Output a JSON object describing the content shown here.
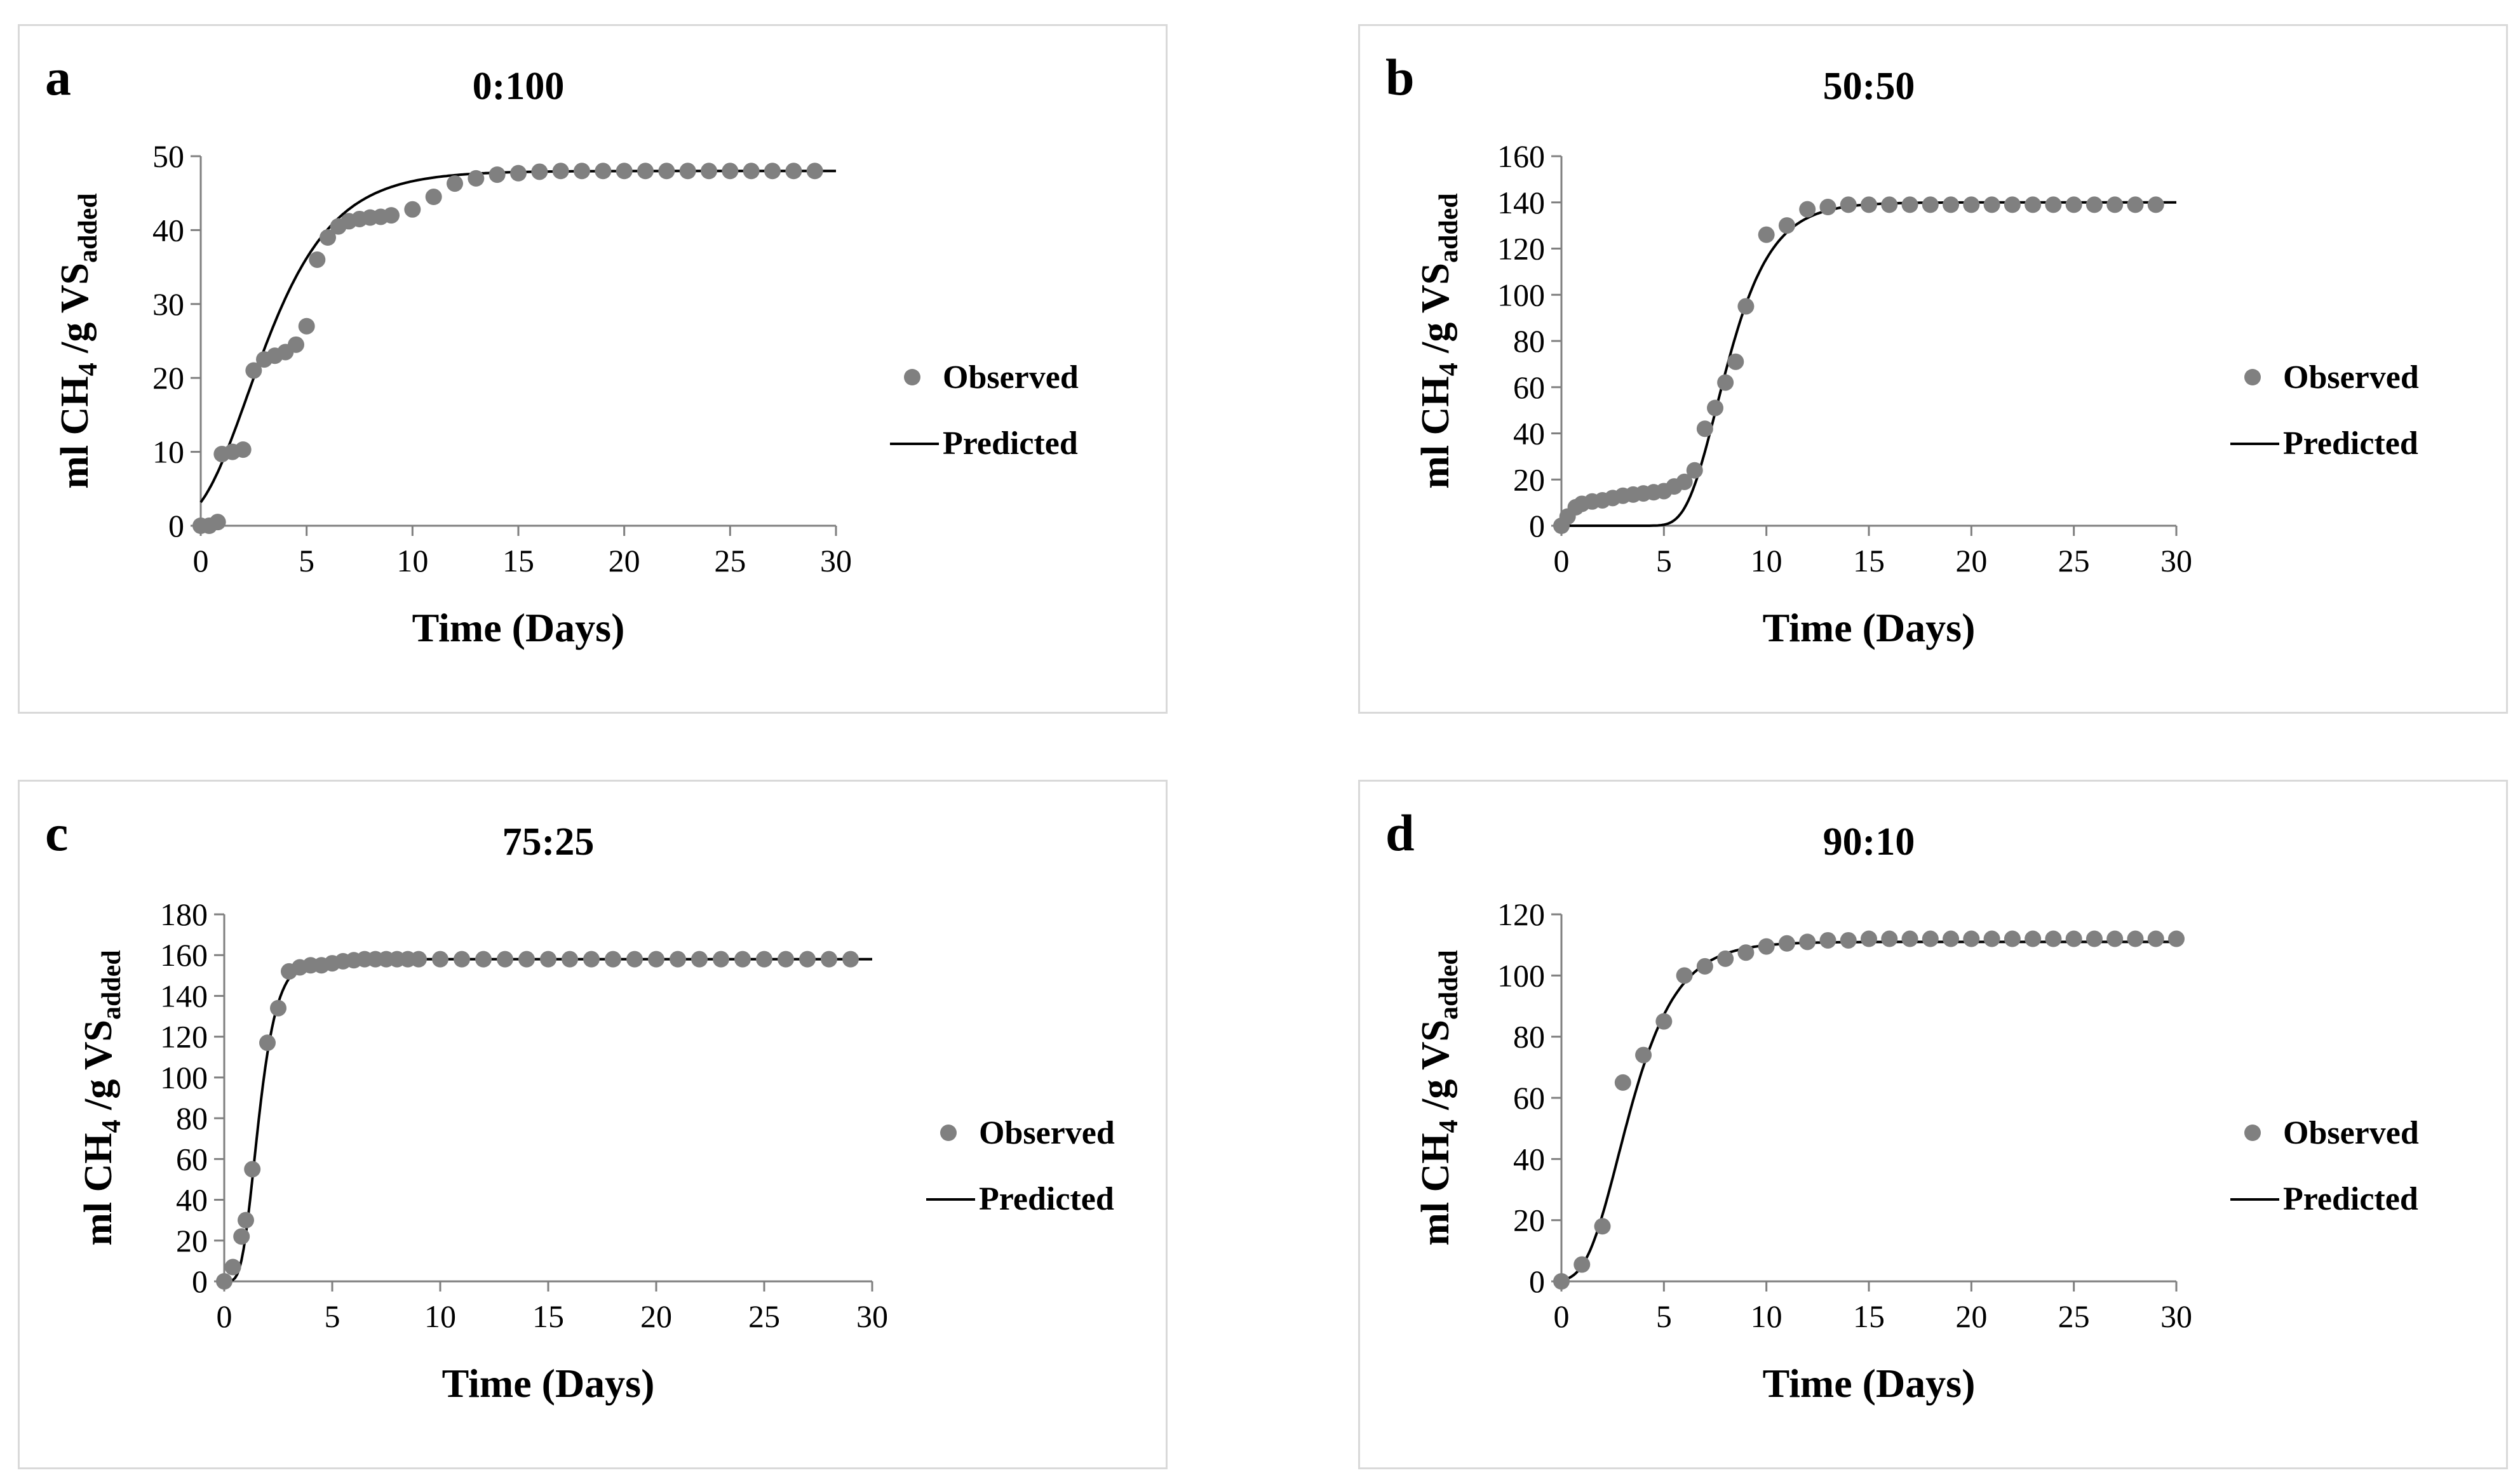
{
  "style": {
    "marker_color": "#808080",
    "line_color": "#000000",
    "axis_color": "#7f7f7f",
    "text_color": "#000000",
    "panel_border": "#d9d9d9"
  },
  "chart_data": [
    {
      "type": "scatter",
      "panel_letter": "a",
      "title": "0:100",
      "xlabel": "Time (Days)",
      "ylabel": {
        "base": "ml CH",
        "sub": "4",
        "mid": " /g VS",
        "sub2": "added"
      },
      "xlim": [
        0,
        30
      ],
      "ylim": [
        0,
        50
      ],
      "xticks": [
        0,
        5,
        10,
        15,
        20,
        25,
        30
      ],
      "yticks": [
        0,
        10,
        20,
        30,
        40,
        50
      ],
      "legend_position": "right",
      "series": [
        {
          "name": "Observed",
          "kind": "markers",
          "x": [
            0,
            0.4,
            0.8,
            1,
            1.5,
            2,
            2.5,
            3,
            3.5,
            4,
            4.5,
            5,
            5.5,
            6,
            6.5,
            7,
            7.5,
            8,
            8.5,
            9,
            10,
            11,
            12,
            13,
            14,
            15,
            16,
            17,
            18,
            19,
            20,
            21,
            22,
            23,
            24,
            25,
            26,
            27,
            28,
            29
          ],
          "y": [
            0,
            0,
            0.5,
            9.7,
            10,
            10.3,
            21,
            22.5,
            23,
            23.5,
            24.5,
            27,
            36,
            39,
            40.5,
            41.2,
            41.5,
            41.7,
            41.8,
            42,
            42.8,
            44.5,
            46.3,
            47,
            47.5,
            47.7,
            47.9,
            48,
            48,
            48,
            48,
            48,
            48,
            48,
            48,
            48,
            48,
            48,
            48,
            48
          ]
        },
        {
          "name": "Predicted",
          "kind": "line",
          "model": {
            "P": 48,
            "Rm": 8.0,
            "lambda": 0
          }
        }
      ]
    },
    {
      "type": "scatter",
      "panel_letter": "b",
      "title": "50:50",
      "xlabel": "Time (Days)",
      "ylabel": {
        "base": "ml CH",
        "sub": "4",
        "mid": " /g VS",
        "sub2": "added"
      },
      "xlim": [
        0,
        30
      ],
      "ylim": [
        0,
        160
      ],
      "xticks": [
        0,
        5,
        10,
        15,
        20,
        25,
        30
      ],
      "yticks": [
        0,
        20,
        40,
        60,
        80,
        100,
        120,
        140,
        160
      ],
      "legend_position": "right",
      "series": [
        {
          "name": "Observed",
          "kind": "markers",
          "x": [
            0,
            0.3,
            0.7,
            1,
            1.5,
            2,
            2.5,
            3,
            3.5,
            4,
            4.5,
            5,
            5.5,
            6,
            6.5,
            7,
            7.5,
            8,
            8.5,
            9,
            10,
            11,
            12,
            13,
            14,
            15,
            16,
            17,
            18,
            19,
            20,
            21,
            22,
            23,
            24,
            25,
            26,
            27,
            28,
            29
          ],
          "y": [
            0,
            4,
            8,
            9.5,
            10.5,
            11,
            12,
            13,
            13.5,
            14,
            14.5,
            15,
            17,
            19,
            24,
            42,
            51,
            62,
            71,
            95,
            126,
            130,
            137,
            138,
            139,
            139,
            139,
            139,
            139,
            139,
            139,
            139,
            139,
            139,
            139,
            139,
            139,
            139,
            139,
            139
          ]
        },
        {
          "name": "Predicted",
          "kind": "line",
          "model": {
            "P": 140,
            "Rm": 35,
            "lambda": 6.1
          }
        }
      ]
    },
    {
      "type": "scatter",
      "panel_letter": "c",
      "title": "75:25",
      "xlabel": "Time (Days)",
      "ylabel": {
        "base": "ml CH",
        "sub": "4",
        "mid": " /g VS",
        "sub2": "added"
      },
      "xlim": [
        0,
        30
      ],
      "ylim": [
        0,
        180
      ],
      "xticks": [
        0,
        5,
        10,
        15,
        20,
        25,
        30
      ],
      "yticks": [
        0,
        20,
        40,
        60,
        80,
        100,
        120,
        140,
        160,
        180
      ],
      "legend_position": "right",
      "series": [
        {
          "name": "Observed",
          "kind": "markers",
          "x": [
            0,
            0.4,
            0.8,
            1,
            1.3,
            2,
            2.5,
            3,
            3.5,
            4,
            4.5,
            5,
            5.5,
            6,
            6.5,
            7,
            7.5,
            8,
            8.5,
            9,
            10,
            11,
            12,
            13,
            14,
            15,
            16,
            17,
            18,
            19,
            20,
            21,
            22,
            23,
            24,
            25,
            26,
            27,
            28,
            29
          ],
          "y": [
            0,
            7,
            22,
            30,
            55,
            117,
            134,
            152,
            154,
            155,
            155,
            156,
            157,
            157.5,
            158,
            158,
            158,
            158,
            158,
            158,
            158,
            158,
            158,
            158,
            158,
            158,
            158,
            158,
            158,
            158,
            158,
            158,
            158,
            158,
            158,
            158,
            158,
            158,
            158,
            158
          ]
        },
        {
          "name": "Predicted",
          "kind": "line",
          "model": {
            "P": 158,
            "Rm": 100,
            "lambda": 0.8
          }
        }
      ]
    },
    {
      "type": "scatter",
      "panel_letter": "d",
      "title": "90:10",
      "xlabel": "Time (Days)",
      "ylabel": {
        "base": "ml CH",
        "sub": "4",
        "mid": " /g VS",
        "sub2": "added"
      },
      "xlim": [
        0,
        30
      ],
      "ylim": [
        0,
        120
      ],
      "xticks": [
        0,
        5,
        10,
        15,
        20,
        25,
        30
      ],
      "yticks": [
        0,
        20,
        40,
        60,
        80,
        100,
        120
      ],
      "legend_position": "right",
      "series": [
        {
          "name": "Observed",
          "kind": "markers",
          "x": [
            0,
            1,
            2,
            3,
            4,
            5,
            6,
            7,
            8,
            9,
            10,
            11,
            12,
            13,
            14,
            15,
            16,
            17,
            18,
            19,
            20,
            21,
            22,
            23,
            24,
            25,
            26,
            27,
            28,
            29,
            30
          ],
          "y": [
            0,
            5.5,
            18,
            65,
            74,
            85,
            100,
            103,
            105.5,
            107.5,
            109.5,
            110.5,
            111,
            111.5,
            111.5,
            112,
            112,
            112,
            112,
            112,
            112,
            112,
            112,
            112,
            112,
            112,
            112,
            112,
            112,
            112,
            112
          ]
        },
        {
          "name": "Predicted",
          "kind": "line",
          "model": {
            "P": 111,
            "Rm": 26,
            "lambda": 1.2
          }
        }
      ]
    }
  ]
}
